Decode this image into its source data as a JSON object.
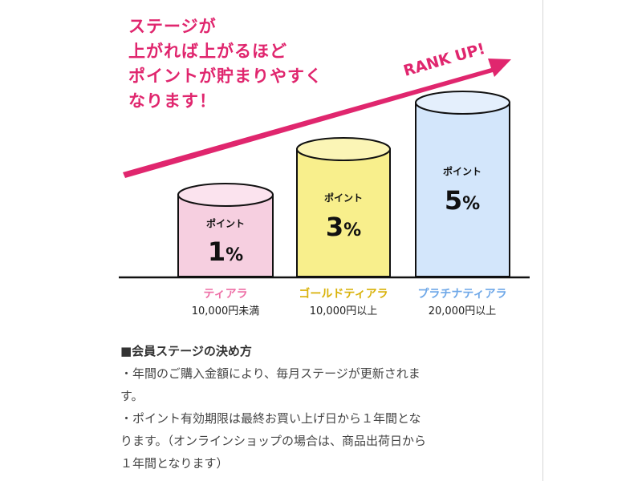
{
  "headline": [
    "ステージが",
    "上がれば上がるほど",
    "ポイントが貯まりやすく",
    "なります！"
  ],
  "rank_up_label": "RANK UP!",
  "colors": {
    "accent": "#e0266e",
    "tier1": "#ee6fa6",
    "tier1_fill": "#f6cfe0",
    "tier2": "#d9b20a",
    "tier2_fill": "#f8ef8c",
    "tier3": "#6fa8e8",
    "tier3_fill": "#d3e6fb"
  },
  "tiers": [
    {
      "point_label": "ポイント",
      "value": "1",
      "unit": "%",
      "name": "ティアラ",
      "condition": "10,000円未満"
    },
    {
      "point_label": "ポイント",
      "value": "3",
      "unit": "%",
      "name": "ゴールドティアラ",
      "condition": "10,000円以上"
    },
    {
      "point_label": "ポイント",
      "value": "5",
      "unit": "%",
      "name": "プラチナティアラ",
      "condition": "20,000円以上"
    }
  ],
  "notes": {
    "heading": "■会員ステージの決め方",
    "lines": [
      "・年間のご購入金額により、毎月ステージが更新されま",
      "す。",
      "・ポイント有効期限は最終お買い上げ日から１年間とな",
      "ります。（オンラインショップの場合は、商品出荷日から",
      "１年間となります）"
    ]
  }
}
